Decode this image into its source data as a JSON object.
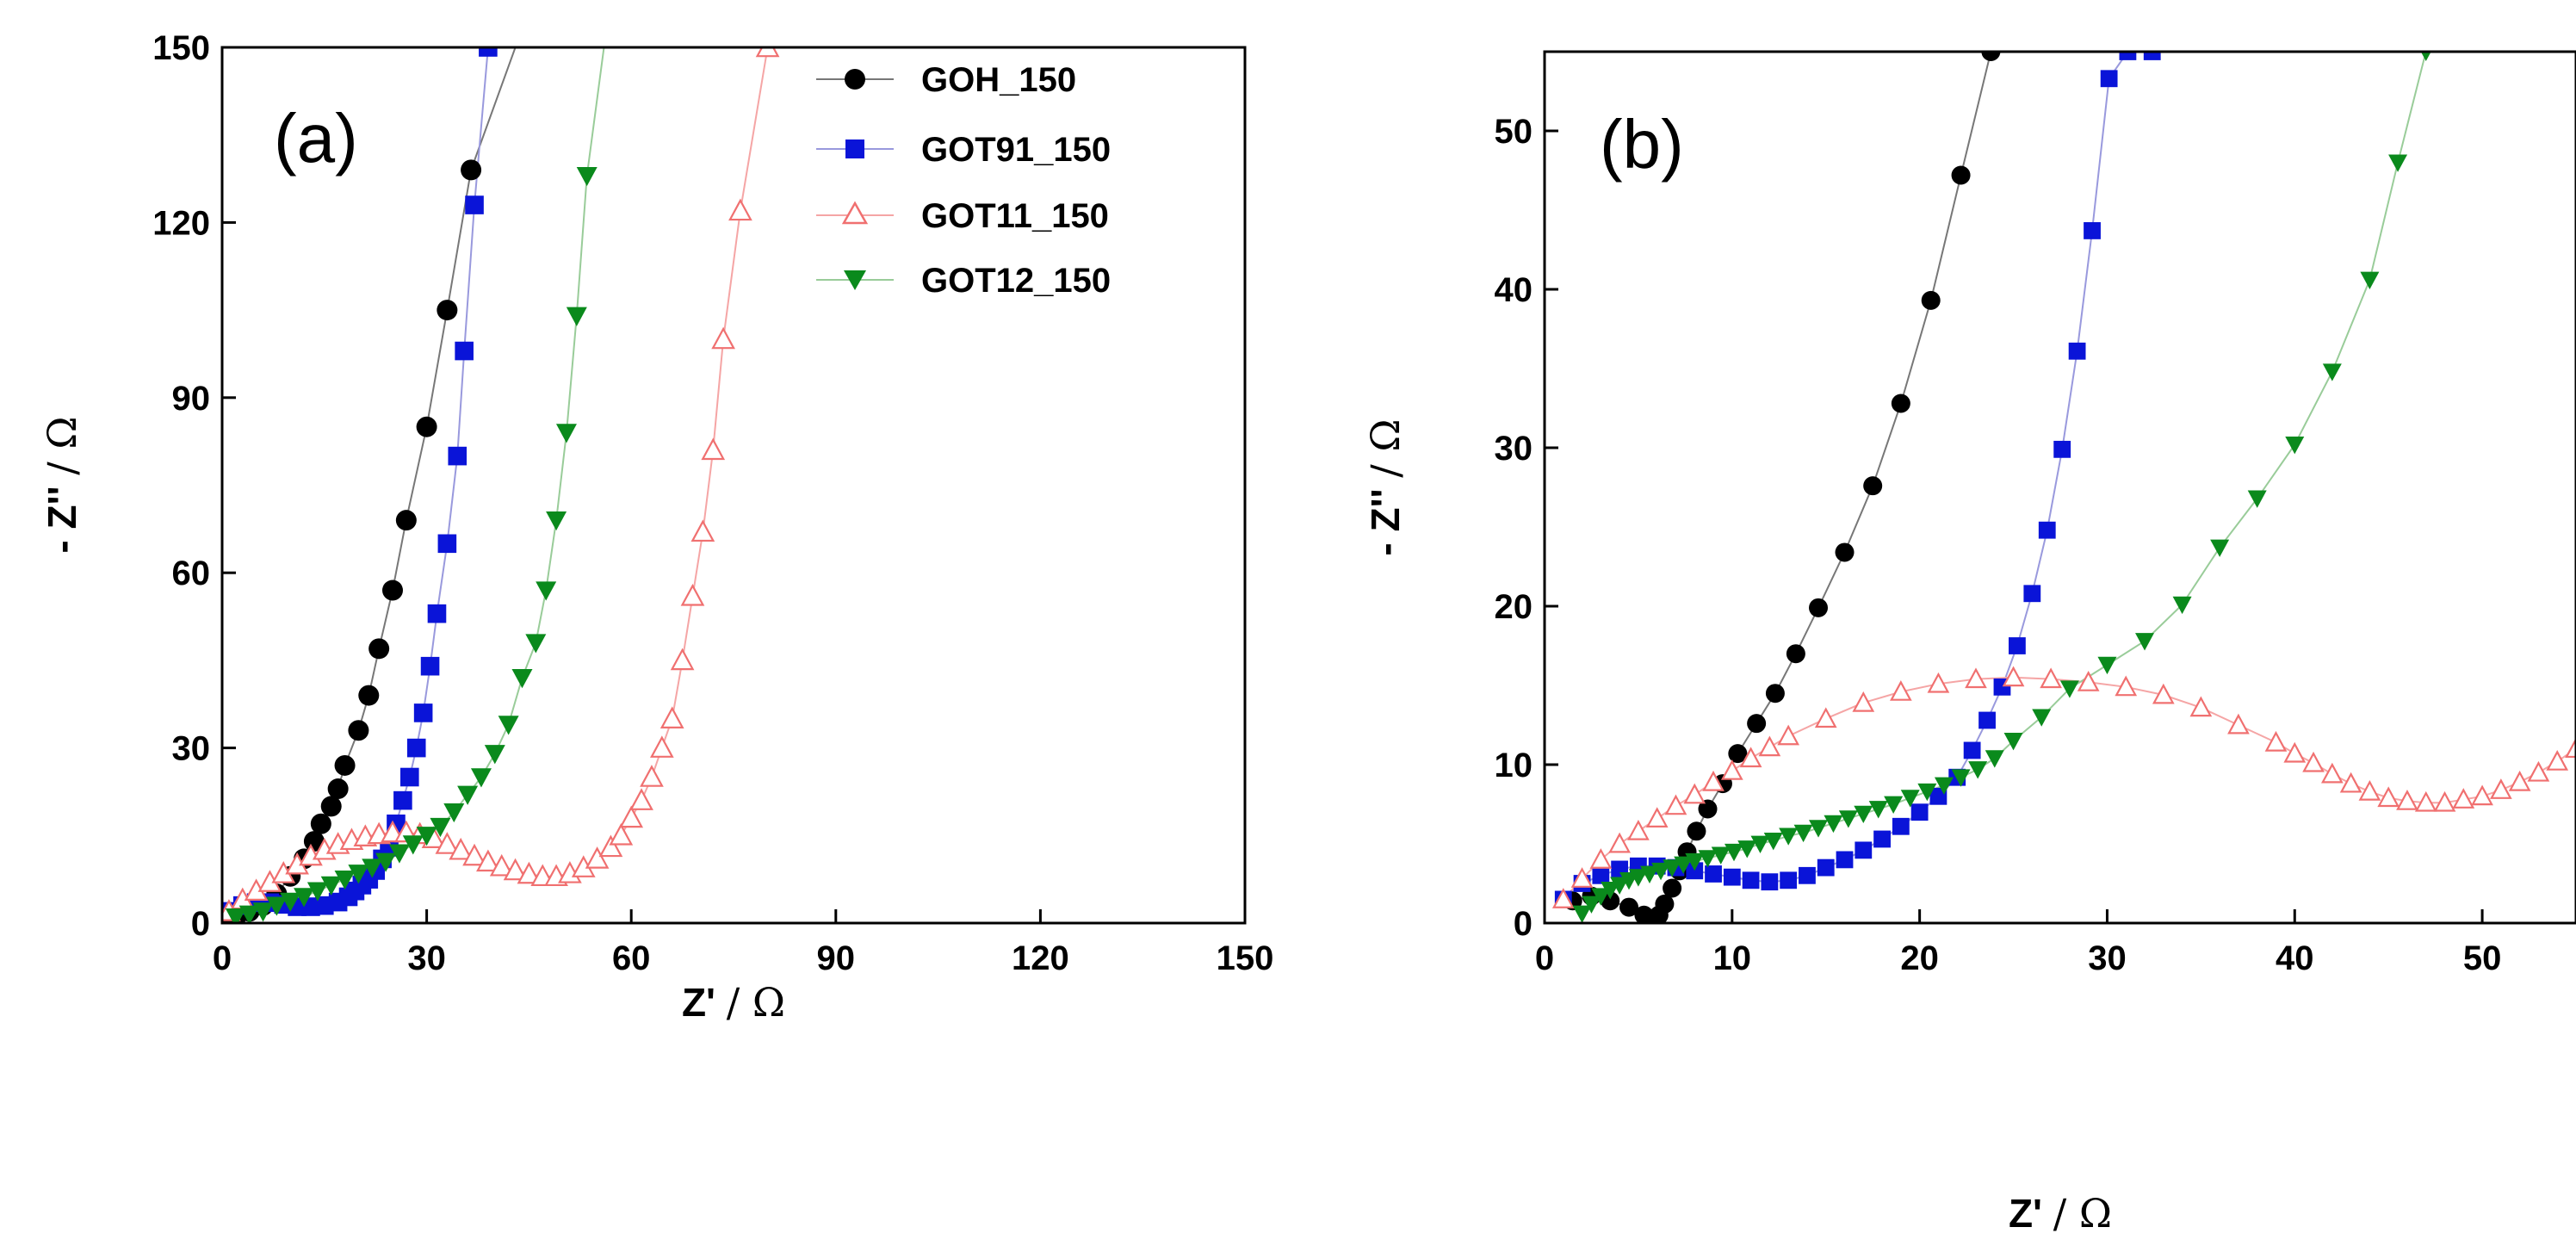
{
  "chart_data": [
    {
      "type": "scatter",
      "panel_label": "(a)",
      "xlabel_main": "Z'",
      "xlabel_unit": "/ Ω",
      "ylabel_main": "- Z''",
      "ylabel_unit": "/ Ω",
      "xlim": [
        0,
        150
      ],
      "ylim": [
        0,
        150
      ],
      "xticks": [
        0,
        30,
        60,
        90,
        120,
        150
      ],
      "yticks": [
        0,
        30,
        60,
        90,
        120,
        150
      ],
      "grid": false,
      "legend_position": "top-right",
      "series": [
        {
          "name": "GOH_150",
          "color": "#000000",
          "line_color": "#777777",
          "marker": "circle",
          "filled": true,
          "x": [
            0.5,
            2,
            4,
            6,
            8,
            10,
            12,
            13.5,
            14.5,
            16,
            17,
            18,
            20,
            21.5,
            23,
            25,
            27,
            30,
            33,
            36.5
          ],
          "y": [
            0.5,
            1,
            2,
            3,
            5,
            8,
            11,
            14,
            17,
            20,
            23,
            27,
            33,
            39,
            47,
            57,
            69,
            85,
            105,
            129
          ],
          "line_extend": [
            43,
            150
          ]
        },
        {
          "name": "GOT91_150",
          "color": "#0a14d8",
          "line_color": "#9999dd",
          "marker": "square",
          "filled": true,
          "x": [
            1,
            3,
            5,
            7,
            9,
            11,
            13,
            15,
            17,
            18.5,
            19.5,
            20.5,
            21.5,
            22.5,
            23.5,
            24.5,
            25.5,
            26.5,
            27.5,
            28.5,
            29.5,
            30.5,
            31.5,
            33,
            34.5,
            35.5,
            37,
            39
          ],
          "y": [
            2,
            3,
            3.5,
            3.5,
            3.2,
            2.8,
            2.8,
            3,
            3.6,
            4.5,
            5.5,
            6.5,
            7.5,
            9,
            11,
            13,
            17,
            21,
            25,
            30,
            36,
            44,
            53,
            65,
            80,
            98,
            123,
            150
          ],
          "line_extend": [
            41,
            150
          ]
        },
        {
          "name": "GOT11_150",
          "color": "#f07070",
          "line_color": "#f5a5a5",
          "marker": "triangle-up",
          "filled": false,
          "x": [
            1,
            3,
            5,
            7,
            9,
            11,
            13,
            15,
            17,
            19,
            21,
            23,
            25,
            27,
            29,
            31,
            33,
            35,
            37,
            39,
            41,
            43,
            45,
            47,
            49,
            51,
            53,
            55,
            57,
            58.5,
            60,
            61.5,
            63,
            64.5,
            66,
            67.5,
            69,
            70.5,
            72,
            73.5,
            76,
            80
          ],
          "y": [
            2,
            4,
            5.5,
            7,
            8.5,
            10,
            11.5,
            12.5,
            13.5,
            14.2,
            14.8,
            15.2,
            15.5,
            15.5,
            15.2,
            14.5,
            13.5,
            12.5,
            11.5,
            10.5,
            9.7,
            9,
            8.4,
            8,
            8,
            8.5,
            9.5,
            11,
            13,
            15,
            18,
            21,
            25,
            30,
            35,
            45,
            56,
            67,
            81,
            100,
            122,
            150
          ],
          "line_extend": [
            83,
            150
          ]
        },
        {
          "name": "GOT12_150",
          "color": "#0a8a1c",
          "line_color": "#99cc99",
          "marker": "triangle-down",
          "filled": true,
          "x": [
            2,
            4,
            6,
            8,
            10,
            12,
            14,
            16,
            18,
            20,
            22,
            24,
            26,
            28,
            30,
            32,
            34,
            36,
            38,
            40,
            42,
            44,
            46,
            47.5,
            49,
            50.5,
            52,
            53.5
          ],
          "y": [
            1,
            1.5,
            2,
            3,
            3.7,
            4.5,
            5.5,
            6.5,
            7.5,
            8.5,
            9.5,
            10.5,
            12,
            13.5,
            15,
            16.5,
            19,
            22,
            25,
            29,
            34,
            42,
            48,
            57,
            69,
            84,
            104,
            128
          ],
          "line_extend": [
            56,
            150
          ]
        }
      ]
    },
    {
      "type": "scatter",
      "panel_label": "(b)",
      "xlabel_main": "Z'",
      "xlabel_unit": "/ Ω",
      "ylabel_main": "- Z''",
      "ylabel_unit": "/ Ω",
      "xlim": [
        0,
        55
      ],
      "ylim": [
        0,
        55
      ],
      "xticks": [
        0,
        10,
        20,
        30,
        40,
        50
      ],
      "yticks": [
        0,
        10,
        20,
        30,
        40,
        50
      ],
      "grid": false,
      "series": [
        {
          "name": "GOH_150",
          "color": "#000000",
          "line_color": "#777777",
          "marker": "circle",
          "filled": true,
          "x": [
            1.5,
            2.5,
            3.5,
            4.5,
            5.3,
            5.8,
            6.1,
            6.4,
            6.8,
            7.2,
            7.6,
            8.1,
            8.7,
            9.5,
            10.3,
            11.3,
            12.3,
            13.4,
            14.6,
            16,
            17.5,
            19,
            20.6,
            22.2,
            23.8
          ],
          "y": [
            1.4,
            1.7,
            1.4,
            1,
            0.5,
            0.3,
            0.5,
            1.2,
            2.2,
            3.3,
            4.5,
            5.8,
            7.2,
            8.8,
            10.7,
            12.6,
            14.5,
            17,
            19.9,
            23.4,
            27.6,
            32.8,
            39.3,
            47.2,
            55
          ],
          "line_extend": [
            25.5,
            55
          ]
        },
        {
          "name": "GOT91_150",
          "color": "#0a14d8",
          "line_color": "#9999dd",
          "marker": "square",
          "filled": true,
          "x": [
            1,
            2,
            3,
            4,
            5,
            6,
            7,
            8,
            9,
            10,
            11,
            12,
            13,
            14,
            15,
            16,
            17,
            18,
            19,
            20,
            21,
            22,
            22.8,
            23.6,
            24.4,
            25.2,
            26,
            26.8,
            27.6,
            28.4,
            29.2,
            30.1,
            31.1,
            32.4
          ],
          "y": [
            1.5,
            2.5,
            3,
            3.4,
            3.6,
            3.6,
            3.5,
            3.3,
            3.1,
            2.9,
            2.7,
            2.6,
            2.7,
            3,
            3.5,
            4,
            4.6,
            5.3,
            6.1,
            7,
            8,
            9.2,
            10.9,
            12.8,
            14.9,
            17.5,
            20.8,
            24.8,
            29.9,
            36.1,
            43.7,
            53.3,
            55,
            55
          ],
          "line_extend": [
            33.5,
            55
          ]
        },
        {
          "name": "GOT11_150",
          "color": "#f07070",
          "line_color": "#f5a5a5",
          "marker": "triangle-up",
          "filled": false,
          "x": [
            1,
            2,
            3,
            4,
            5,
            6,
            7,
            8,
            9,
            10,
            11,
            12,
            13,
            15,
            17,
            19,
            21,
            23,
            25,
            27,
            29,
            31,
            33,
            35,
            37,
            39,
            40,
            41,
            42,
            43,
            44,
            45,
            46,
            47,
            48,
            49,
            50,
            51,
            52,
            53,
            54,
            55
          ],
          "y": [
            1.5,
            2.8,
            4,
            5,
            5.8,
            6.6,
            7.4,
            8.1,
            8.9,
            9.6,
            10.4,
            11.1,
            11.8,
            12.9,
            13.9,
            14.6,
            15.1,
            15.4,
            15.5,
            15.4,
            15.2,
            14.9,
            14.4,
            13.6,
            12.5,
            11.4,
            10.7,
            10.1,
            9.4,
            8.8,
            8.3,
            7.9,
            7.7,
            7.6,
            7.6,
            7.8,
            8,
            8.4,
            8.9,
            9.5,
            10.2,
            11
          ]
        },
        {
          "name": "GOT12_150",
          "color": "#0a8a1c",
          "line_color": "#99cc99",
          "marker": "triangle-down",
          "filled": true,
          "x": [
            2,
            2.5,
            3,
            3.5,
            4,
            4.5,
            5,
            5.6,
            6.2,
            6.8,
            7.4,
            8,
            8.7,
            9.4,
            10.1,
            10.8,
            11.5,
            12.2,
            13,
            13.8,
            14.6,
            15.4,
            16.2,
            17,
            17.8,
            18.6,
            19.5,
            20.4,
            21.3,
            22.2,
            23.1,
            24,
            25,
            26.5,
            28,
            30,
            32,
            34,
            36,
            38,
            40,
            42,
            44,
            45.5,
            47
          ],
          "y": [
            0.6,
            1.2,
            1.7,
            2.1,
            2.4,
            2.7,
            2.9,
            3.1,
            3.3,
            3.5,
            3.7,
            3.9,
            4.1,
            4.3,
            4.5,
            4.7,
            5,
            5.2,
            5.5,
            5.7,
            6,
            6.3,
            6.6,
            6.9,
            7.2,
            7.5,
            7.9,
            8.3,
            8.7,
            9.2,
            9.7,
            10.4,
            11.5,
            13,
            14.8,
            16.3,
            17.8,
            20.1,
            23.7,
            26.8,
            30.2,
            34.8,
            40.6,
            48,
            55
          ],
          "line_extend": [
            48.3,
            55
          ]
        }
      ]
    }
  ]
}
